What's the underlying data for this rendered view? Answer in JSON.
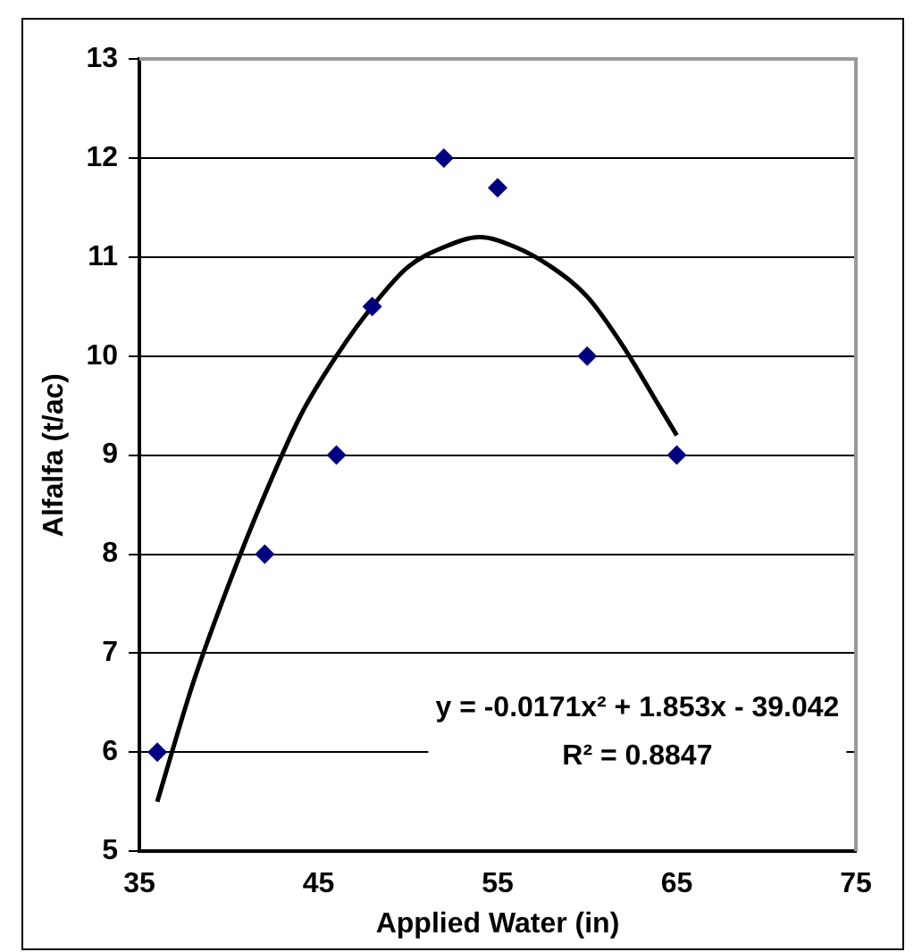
{
  "chart_data": {
    "type": "scatter",
    "xlabel": "Applied Water (in)",
    "ylabel": "Alfalfa (t/ac)",
    "xlim": [
      35,
      75
    ],
    "xticks": [
      35,
      45,
      55,
      65,
      75
    ],
    "ylim": [
      5,
      13
    ],
    "yticks": [
      5,
      6,
      7,
      8,
      9,
      10,
      11,
      12,
      13
    ],
    "grid": "y",
    "legend": false,
    "marker": "diamond",
    "series": [
      {
        "type": "scatter",
        "color": "#000080",
        "x": [
          36,
          42,
          46,
          48,
          52,
          55,
          60,
          65
        ],
        "values": [
          6,
          8,
          9,
          10.5,
          12,
          11.7,
          10,
          9
        ]
      },
      {
        "type": "line",
        "color": "#000000",
        "marker": "none",
        "x": [
          36,
          38,
          40,
          42,
          44,
          46,
          48,
          50,
          52,
          54,
          56,
          58,
          60,
          62,
          64,
          65
        ],
        "values": [
          5.5,
          6.7,
          7.7,
          8.6,
          9.4,
          10.0,
          10.5,
          10.9,
          11.1,
          11.2,
          11.1,
          10.9,
          10.6,
          10.1,
          9.5,
          9.2
        ]
      }
    ],
    "annotations": [
      "y = -0.0171x² + 1.853x - 39.042",
      "R² = 0.8847"
    ]
  }
}
